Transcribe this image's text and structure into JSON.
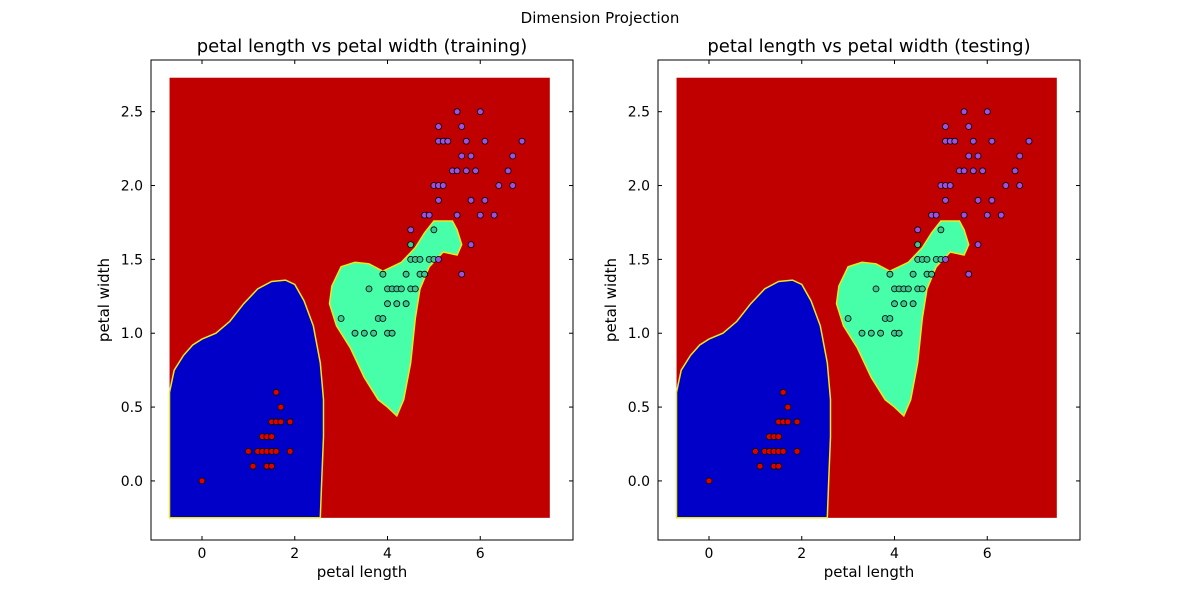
{
  "figure": {
    "suptitle": "Dimension Projection"
  },
  "chart_data": [
    {
      "type": "scatter",
      "title": "petal length vs  petal width (training)",
      "xlabel": "petal length",
      "ylabel": "petal width",
      "xlim": [
        -1.1,
        8.0
      ],
      "ylim": [
        -0.4,
        2.85
      ],
      "xticks": [
        0,
        2,
        4,
        6
      ],
      "xtick_labels": [
        "0",
        "2",
        "4",
        "6"
      ],
      "yticks": [
        0.0,
        0.5,
        1.0,
        1.5,
        2.0,
        2.5
      ],
      "ytick_labels": [
        "0.0",
        "0.5",
        "1.0",
        "1.5",
        "2.0",
        "2.5"
      ],
      "grid": false,
      "background_region": {
        "x": [
          -0.7,
          7.5
        ],
        "y": [
          -0.25,
          2.73
        ],
        "color": "#c00000"
      },
      "regions": [
        {
          "class": "setosa",
          "color": "#0000c8",
          "polygon": [
            [
              -0.7,
              -0.25
            ],
            [
              -0.7,
              0.6
            ],
            [
              -0.6,
              0.75
            ],
            [
              -0.4,
              0.85
            ],
            [
              -0.2,
              0.92
            ],
            [
              0.0,
              0.96
            ],
            [
              0.3,
              1.0
            ],
            [
              0.6,
              1.08
            ],
            [
              0.9,
              1.2
            ],
            [
              1.2,
              1.3
            ],
            [
              1.5,
              1.35
            ],
            [
              1.8,
              1.36
            ],
            [
              2.0,
              1.33
            ],
            [
              2.2,
              1.22
            ],
            [
              2.4,
              1.05
            ],
            [
              2.55,
              0.8
            ],
            [
              2.62,
              0.55
            ],
            [
              2.62,
              0.3
            ],
            [
              2.58,
              0.0
            ],
            [
              2.55,
              -0.25
            ]
          ]
        },
        {
          "class": "versicolor",
          "color": "#46ffa8",
          "polygon": [
            [
              2.75,
              1.2
            ],
            [
              2.8,
              1.32
            ],
            [
              3.0,
              1.45
            ],
            [
              3.3,
              1.48
            ],
            [
              3.6,
              1.47
            ],
            [
              3.9,
              1.42
            ],
            [
              4.3,
              1.48
            ],
            [
              4.6,
              1.58
            ],
            [
              4.8,
              1.68
            ],
            [
              5.0,
              1.76
            ],
            [
              5.4,
              1.76
            ],
            [
              5.5,
              1.7
            ],
            [
              5.6,
              1.6
            ],
            [
              5.5,
              1.53
            ],
            [
              5.2,
              1.55
            ],
            [
              4.9,
              1.45
            ],
            [
              4.7,
              1.3
            ],
            [
              4.6,
              1.1
            ],
            [
              4.5,
              0.8
            ],
            [
              4.35,
              0.55
            ],
            [
              4.2,
              0.44
            ],
            [
              4.0,
              0.5
            ],
            [
              3.8,
              0.55
            ],
            [
              3.5,
              0.7
            ],
            [
              3.2,
              0.9
            ],
            [
              2.9,
              1.05
            ]
          ]
        }
      ],
      "series": [
        {
          "name": "",
          "color": "#e00000",
          "x": [
            0.0,
            1.0,
            1.1,
            1.2,
            1.3,
            1.3,
            1.4,
            1.4,
            1.4,
            1.5,
            1.5,
            1.5,
            1.5,
            1.6,
            1.6,
            1.6,
            1.7,
            1.7,
            1.9,
            1.9
          ],
          "y": [
            0.0,
            0.2,
            0.1,
            0.2,
            0.2,
            0.3,
            0.1,
            0.2,
            0.3,
            0.1,
            0.2,
            0.4,
            0.3,
            0.2,
            0.4,
            0.6,
            0.4,
            0.5,
            0.2,
            0.4
          ]
        },
        {
          "name": "",
          "color": "#3cc890",
          "x": [
            3.0,
            3.3,
            3.5,
            3.6,
            3.7,
            3.8,
            3.9,
            3.9,
            4.0,
            4.0,
            4.0,
            4.1,
            4.1,
            4.2,
            4.2,
            4.3,
            4.4,
            4.4,
            4.5,
            4.5,
            4.5,
            4.6,
            4.6,
            4.7,
            4.7,
            4.8,
            4.9,
            5.0,
            5.0
          ],
          "y": [
            1.1,
            1.0,
            1.0,
            1.3,
            1.0,
            1.1,
            1.1,
            1.4,
            1.0,
            1.2,
            1.3,
            1.0,
            1.3,
            1.2,
            1.3,
            1.3,
            1.2,
            1.4,
            1.3,
            1.5,
            1.6,
            1.3,
            1.5,
            1.4,
            1.5,
            1.4,
            1.5,
            1.5,
            1.7
          ]
        },
        {
          "name": "",
          "color": "#a050e0",
          "x": [
            4.5,
            4.8,
            4.9,
            5.0,
            5.1,
            5.1,
            5.1,
            5.1,
            5.2,
            5.3,
            5.4,
            5.5,
            5.5,
            5.6,
            5.6,
            5.6,
            5.7,
            5.7,
            5.8,
            5.8,
            5.9,
            6.0,
            6.0,
            6.1,
            6.1,
            6.3,
            6.4,
            6.6,
            6.7,
            6.7,
            6.9,
            5.1,
            5.2,
            5.5,
            5.8
          ],
          "y": [
            1.7,
            1.8,
            1.8,
            2.0,
            2.4,
            2.3,
            1.9,
            1.5,
            2.3,
            2.3,
            2.1,
            1.8,
            2.1,
            2.4,
            2.2,
            1.4,
            2.3,
            2.1,
            1.6,
            2.2,
            2.1,
            1.8,
            2.5,
            2.3,
            1.9,
            1.8,
            2.0,
            2.1,
            2.2,
            2.0,
            2.3,
            2.0,
            2.0,
            2.5,
            1.9
          ]
        }
      ]
    },
    {
      "type": "scatter",
      "title": "petal length vs  petal width (testing)",
      "xlabel": "petal length",
      "ylabel": "petal width",
      "xlim": [
        -1.1,
        8.0
      ],
      "ylim": [
        -0.4,
        2.85
      ],
      "xticks": [
        0,
        2,
        4,
        6
      ],
      "xtick_labels": [
        "0",
        "2",
        "4",
        "6"
      ],
      "yticks": [
        0.0,
        0.5,
        1.0,
        1.5,
        2.0,
        2.5
      ],
      "ytick_labels": [
        "0.0",
        "0.5",
        "1.0",
        "1.5",
        "2.0",
        "2.5"
      ],
      "grid": false,
      "background_region": {
        "x": [
          -0.7,
          7.5
        ],
        "y": [
          -0.25,
          2.73
        ],
        "color": "#c00000"
      },
      "regions": [
        {
          "class": "setosa",
          "color": "#0000c8",
          "polygon": [
            [
              -0.7,
              -0.25
            ],
            [
              -0.7,
              0.6
            ],
            [
              -0.6,
              0.75
            ],
            [
              -0.4,
              0.85
            ],
            [
              -0.2,
              0.92
            ],
            [
              0.0,
              0.96
            ],
            [
              0.3,
              1.0
            ],
            [
              0.6,
              1.08
            ],
            [
              0.9,
              1.2
            ],
            [
              1.2,
              1.3
            ],
            [
              1.5,
              1.35
            ],
            [
              1.8,
              1.36
            ],
            [
              2.0,
              1.33
            ],
            [
              2.2,
              1.22
            ],
            [
              2.4,
              1.05
            ],
            [
              2.55,
              0.8
            ],
            [
              2.62,
              0.55
            ],
            [
              2.62,
              0.3
            ],
            [
              2.58,
              0.0
            ],
            [
              2.55,
              -0.25
            ]
          ]
        },
        {
          "class": "versicolor",
          "color": "#46ffa8",
          "polygon": [
            [
              2.75,
              1.2
            ],
            [
              2.8,
              1.32
            ],
            [
              3.0,
              1.45
            ],
            [
              3.3,
              1.48
            ],
            [
              3.6,
              1.47
            ],
            [
              3.9,
              1.42
            ],
            [
              4.3,
              1.48
            ],
            [
              4.6,
              1.58
            ],
            [
              4.8,
              1.68
            ],
            [
              5.0,
              1.76
            ],
            [
              5.4,
              1.76
            ],
            [
              5.5,
              1.7
            ],
            [
              5.6,
              1.6
            ],
            [
              5.5,
              1.53
            ],
            [
              5.2,
              1.55
            ],
            [
              4.9,
              1.45
            ],
            [
              4.7,
              1.3
            ],
            [
              4.6,
              1.1
            ],
            [
              4.5,
              0.8
            ],
            [
              4.35,
              0.55
            ],
            [
              4.2,
              0.44
            ],
            [
              4.0,
              0.5
            ],
            [
              3.8,
              0.55
            ],
            [
              3.5,
              0.7
            ],
            [
              3.2,
              0.9
            ],
            [
              2.9,
              1.05
            ]
          ]
        }
      ],
      "series": [
        {
          "name": "",
          "color": "#e00000",
          "x": [
            0.0,
            1.0,
            1.1,
            1.2,
            1.3,
            1.3,
            1.4,
            1.4,
            1.4,
            1.5,
            1.5,
            1.5,
            1.5,
            1.6,
            1.6,
            1.6,
            1.7,
            1.7,
            1.9,
            1.9
          ],
          "y": [
            0.0,
            0.2,
            0.1,
            0.2,
            0.2,
            0.3,
            0.1,
            0.2,
            0.3,
            0.1,
            0.2,
            0.4,
            0.3,
            0.2,
            0.4,
            0.6,
            0.4,
            0.5,
            0.2,
            0.4
          ]
        },
        {
          "name": "",
          "color": "#3cc890",
          "x": [
            3.0,
            3.3,
            3.5,
            3.6,
            3.7,
            3.8,
            3.9,
            3.9,
            4.0,
            4.0,
            4.0,
            4.1,
            4.1,
            4.2,
            4.2,
            4.3,
            4.4,
            4.4,
            4.5,
            4.5,
            4.5,
            4.6,
            4.6,
            4.7,
            4.7,
            4.8,
            4.9,
            5.0,
            5.0
          ],
          "y": [
            1.1,
            1.0,
            1.0,
            1.3,
            1.0,
            1.1,
            1.1,
            1.4,
            1.0,
            1.2,
            1.3,
            1.0,
            1.3,
            1.2,
            1.3,
            1.3,
            1.2,
            1.4,
            1.3,
            1.5,
            1.6,
            1.3,
            1.5,
            1.4,
            1.5,
            1.4,
            1.5,
            1.5,
            1.7
          ]
        },
        {
          "name": "",
          "color": "#a050e0",
          "x": [
            4.5,
            4.8,
            4.9,
            5.0,
            5.1,
            5.1,
            5.1,
            5.1,
            5.2,
            5.3,
            5.4,
            5.5,
            5.5,
            5.6,
            5.6,
            5.6,
            5.7,
            5.7,
            5.8,
            5.8,
            5.9,
            6.0,
            6.0,
            6.1,
            6.1,
            6.3,
            6.4,
            6.6,
            6.7,
            6.7,
            6.9,
            5.1,
            5.2,
            5.5,
            5.8
          ],
          "y": [
            1.7,
            1.8,
            1.8,
            2.0,
            2.4,
            2.3,
            1.9,
            1.5,
            2.3,
            2.3,
            2.1,
            1.8,
            2.1,
            2.4,
            2.2,
            1.4,
            2.3,
            2.1,
            1.6,
            2.2,
            2.1,
            1.8,
            2.5,
            2.3,
            1.9,
            1.8,
            2.0,
            2.1,
            2.2,
            2.0,
            2.3,
            2.0,
            2.0,
            2.5,
            1.9
          ]
        }
      ]
    }
  ]
}
